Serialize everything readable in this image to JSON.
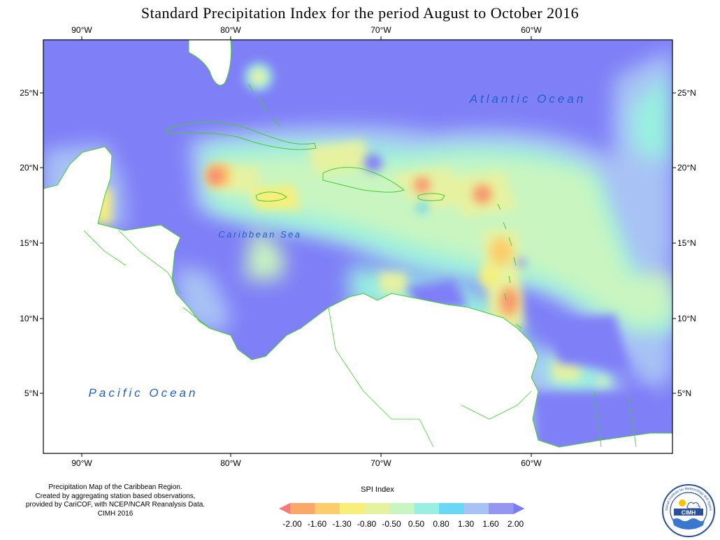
{
  "title": "Standard Precipitation Index for the period August to October 2016",
  "axes": {
    "lon_top": [
      "90°W",
      "80°W",
      "70°W",
      "60°W"
    ],
    "lon_bottom": [
      "90°W",
      "80°W",
      "70°W",
      "60°W"
    ],
    "lat_left": [
      "25°N",
      "20°N",
      "15°N",
      "10°N",
      "5°N"
    ],
    "lat_right": [
      "25°N",
      "20°N",
      "15°N",
      "10°N",
      "5°N"
    ]
  },
  "map_labels": {
    "atlantic": "Atlantic Ocean",
    "caribbean": "Caribbean Sea",
    "pacific": "Pacific Ocean"
  },
  "credit": {
    "line1": "Precipitation Map of the Caribbean Region.",
    "line2": "Created by aggregating station based observations,",
    "line3": "provided by CariCOF, with NCEP/NCAR Reanalysis Data.",
    "line4": "CIMH 2016"
  },
  "legend": {
    "title": "SPI Index",
    "labels": [
      "-2.00",
      "-1.60",
      "-1.30",
      "-0.80",
      "-0.50",
      "0.50",
      "0.80",
      "1.30",
      "1.60",
      "2.00"
    ],
    "colors": [
      "#f47c7c",
      "#f9a86a",
      "#fbcd6c",
      "#f7ef7a",
      "#e6f2a0",
      "#c9f5c0",
      "#99f0e0",
      "#6ad8f5",
      "#a8c2f5",
      "#9595f2",
      "#7c7cf2"
    ]
  },
  "logo": {
    "text": "CIMH",
    "ring_text": "Caribbean Institute for Meteorology and Hydrology"
  },
  "colors": {
    "wet_extreme": "#7f7ff7",
    "coast": "#44cc33"
  }
}
